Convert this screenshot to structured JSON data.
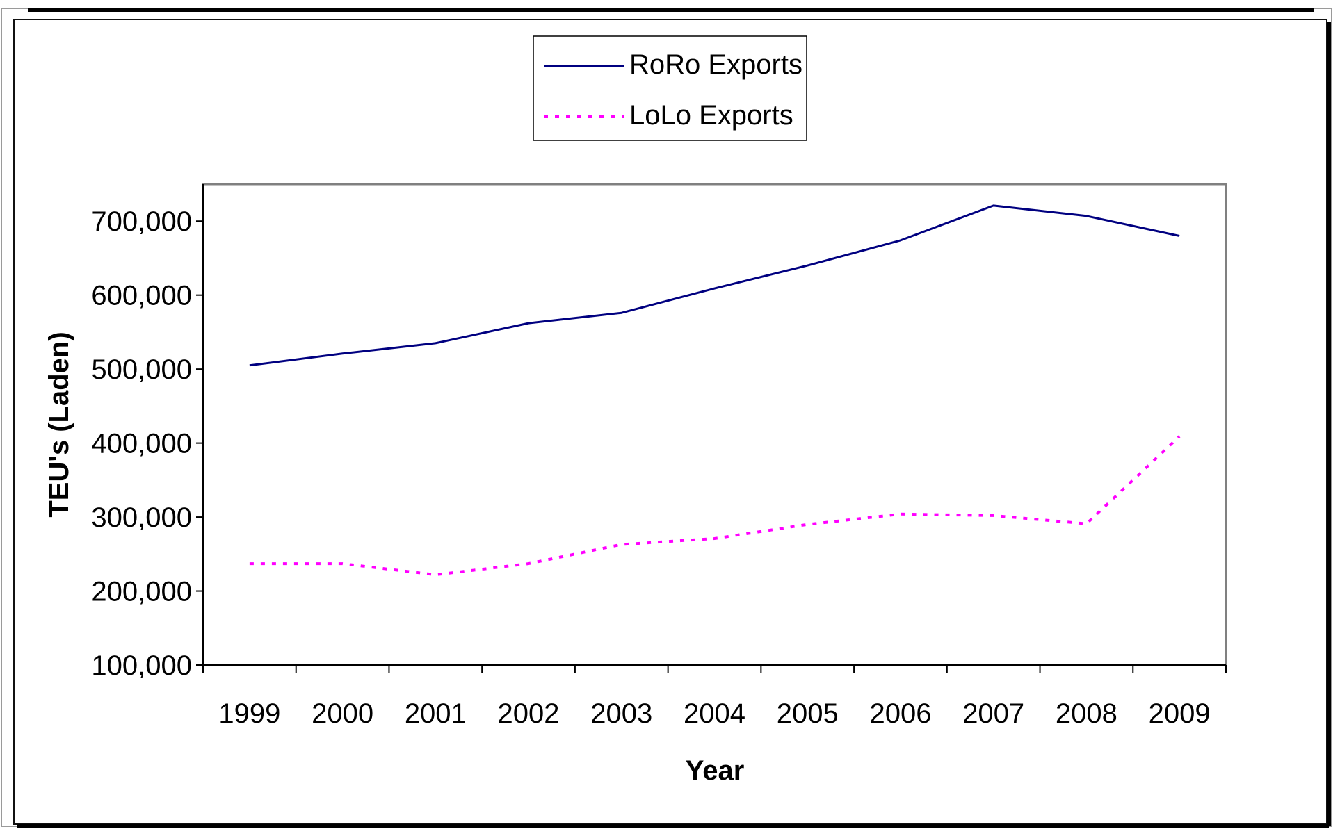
{
  "chart_data": {
    "type": "line",
    "title": "",
    "xlabel": "Year",
    "ylabel": "TEU's (Laden)",
    "categories": [
      "1999",
      "2000",
      "2001",
      "2002",
      "2003",
      "2004",
      "2005",
      "2006",
      "2007",
      "2008",
      "2009"
    ],
    "yticks": [
      "100,000",
      "200,000",
      "300,000",
      "400,000",
      "500,000",
      "600,000",
      "700,000"
    ],
    "ylim": [
      100000,
      750000
    ],
    "grid": false,
    "legend_position": "top-center",
    "series": [
      {
        "name": "RoRo Exports",
        "color": "#000080",
        "style": "solid",
        "values": [
          505000,
          521000,
          535000,
          562000,
          576000,
          609000,
          640000,
          674000,
          721000,
          707000,
          680000
        ]
      },
      {
        "name": "LoLo Exports",
        "color": "#ff00ff",
        "style": "dotted",
        "values": [
          237000,
          237000,
          222000,
          237000,
          263000,
          271000,
          290000,
          304000,
          302000,
          291000,
          409000
        ]
      }
    ]
  }
}
